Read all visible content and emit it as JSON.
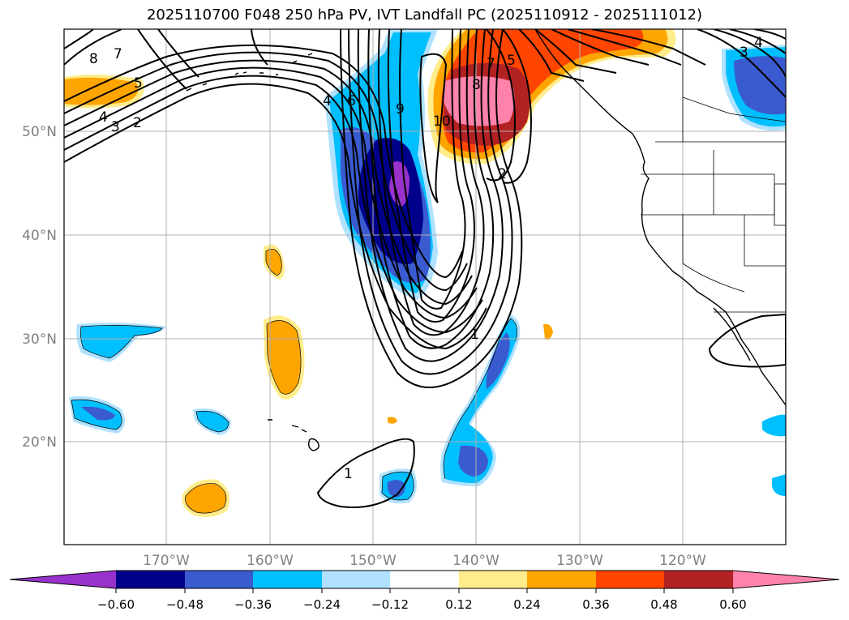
{
  "title": "2025110700 F048 250 hPa PV, IVT Landfall PC (2025110912 - 2025111012)",
  "map": {
    "lat_labels": [
      "50°N",
      "40°N",
      "30°N",
      "20°N"
    ],
    "lon_labels": [
      "170°W",
      "160°W",
      "150°W",
      "140°W",
      "130°W",
      "120°W"
    ],
    "gridline_color": "#b0b0b0",
    "coast_color": "#000000"
  },
  "contour_labels": [
    "8",
    "7",
    "5",
    "4",
    "3",
    "2",
    "4",
    "6",
    "9",
    "10",
    "8",
    "7",
    "5",
    "2",
    "1",
    "1",
    "4",
    "3"
  ],
  "colorbar": {
    "ticks": [
      "−0.60",
      "−0.48",
      "−0.36",
      "−0.24",
      "−0.12",
      "0.12",
      "0.24",
      "0.36",
      "0.48",
      "0.60"
    ],
    "colors": [
      "#9932cc",
      "#00008b",
      "#3a5bd0",
      "#00bfff",
      "#b0e2ff",
      "#ffffff",
      "#ffec8b",
      "#ffa500",
      "#ff4500",
      "#b22222",
      "#ff82ab"
    ]
  }
}
